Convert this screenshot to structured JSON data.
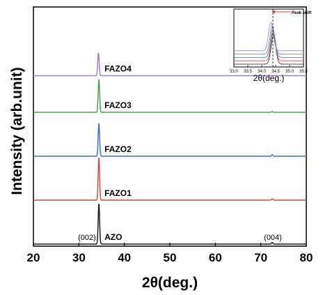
{
  "colors": {
    "AZO": "#1a1a1a",
    "FAZO1": "#d9473f",
    "FAZO2": "#3f6fd1",
    "FAZO3": "#4f9e5c",
    "FAZO4": "#9a7fd6"
  },
  "chart_data": [
    {
      "type": "line",
      "title": "",
      "xlabel": "2θ(deg.)",
      "ylabel": "Intensity (arb.unit)",
      "xlim": [
        20,
        80
      ],
      "x_ticks": [
        20,
        30,
        40,
        50,
        60,
        70,
        80
      ],
      "y_ticks": [],
      "grid": false,
      "legend": "none",
      "series": [
        {
          "name": "AZO",
          "baseline": 0,
          "peaks": [
            {
              "x": 34.4,
              "height": 0.55
            },
            {
              "x": 72.5,
              "height": 0.02
            }
          ]
        },
        {
          "name": "FAZO1",
          "baseline": 0.6,
          "peaks": [
            {
              "x": 34.4,
              "height": 0.58
            },
            {
              "x": 72.5,
              "height": 0.02
            }
          ]
        },
        {
          "name": "FAZO2",
          "baseline": 1.2,
          "peaks": [
            {
              "x": 34.4,
              "height": 0.45
            },
            {
              "x": 72.5,
              "height": 0.02
            }
          ]
        },
        {
          "name": "FAZO3",
          "baseline": 1.8,
          "peaks": [
            {
              "x": 34.4,
              "height": 0.45
            },
            {
              "x": 72.5,
              "height": 0.01
            }
          ]
        },
        {
          "name": "FAZO4",
          "baseline": 2.3,
          "peaks": [
            {
              "x": 34.3,
              "height": 0.31
            }
          ]
        }
      ],
      "annotations": [
        {
          "text": "(002)",
          "x": 34.4
        },
        {
          "text": "(004)",
          "x": 72.5
        }
      ]
    },
    {
      "type": "line",
      "title": "",
      "xlabel": "2θ(deg.)",
      "ylabel": "",
      "xlim": [
        33.0,
        35.5
      ],
      "x_ticks": [
        "33.0",
        "33.5",
        "34.0",
        "34.5",
        "35.0",
        "35.5"
      ],
      "grid": false,
      "reference_line_x": 34.4,
      "annotation": "Peak shift",
      "series": [
        {
          "name": "AZO",
          "baseline": 0,
          "peak_x": 34.42
        },
        {
          "name": "FAZO1",
          "baseline": 0.4,
          "peak_x": 34.41
        },
        {
          "name": "FAZO2",
          "baseline": 0.8,
          "peak_x": 34.4
        },
        {
          "name": "FAZO3",
          "baseline": 1.2,
          "peak_x": 34.38
        },
        {
          "name": "FAZO4",
          "baseline": 1.6,
          "peak_x": 34.33
        }
      ]
    }
  ]
}
